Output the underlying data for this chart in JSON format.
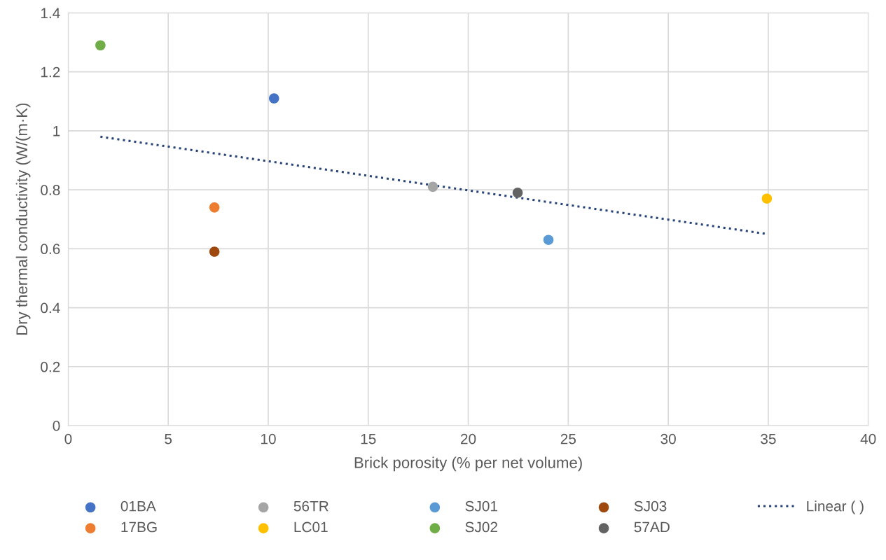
{
  "chart_data": {
    "type": "scatter",
    "xlabel": "Brick porosity (% per net volume)",
    "ylabel": "Dry thermal conductivity (W/(m·K)",
    "xlim": [
      0,
      40
    ],
    "xticks": [
      0,
      5,
      10,
      15,
      20,
      25,
      30,
      35,
      40
    ],
    "ylim": [
      0,
      1.4
    ],
    "yticks": [
      0,
      0.2,
      0.4,
      0.6,
      0.8,
      1,
      1.2,
      1.4
    ],
    "grid": true,
    "legend": "bottom",
    "marker": "circle",
    "series": [
      {
        "name": "01BA",
        "color": "#4472c4",
        "x": [
          10.29
        ],
        "values": [
          1.11
        ]
      },
      {
        "name": "17BG",
        "color": "#ed7d31",
        "x": [
          7.31
        ],
        "values": [
          0.74
        ]
      },
      {
        "name": "56TR",
        "color": "#a5a5a5",
        "x": [
          18.23
        ],
        "values": [
          0.81
        ]
      },
      {
        "name": "LC01",
        "color": "#ffc000",
        "x": [
          34.93
        ],
        "values": [
          0.77
        ]
      },
      {
        "name": "SJ01",
        "color": "#5b9bd5",
        "x": [
          24.01
        ],
        "values": [
          0.63
        ]
      },
      {
        "name": "SJ02",
        "color": "#70ad47",
        "x": [
          1.61
        ],
        "values": [
          1.29
        ]
      },
      {
        "name": "SJ03",
        "color": "#9e480e",
        "x": [
          7.31
        ],
        "values": [
          0.59
        ]
      },
      {
        "name": "57AD",
        "color": "#636363",
        "x": [
          22.47
        ],
        "values": [
          0.79
        ]
      },
      {
        "name": "Linear ( )",
        "type": "line",
        "line_style": "dotted",
        "marker": "none",
        "color": "#264478",
        "x": [
          1.61,
          34.93
        ],
        "values": [
          0.98,
          0.65
        ]
      }
    ]
  }
}
